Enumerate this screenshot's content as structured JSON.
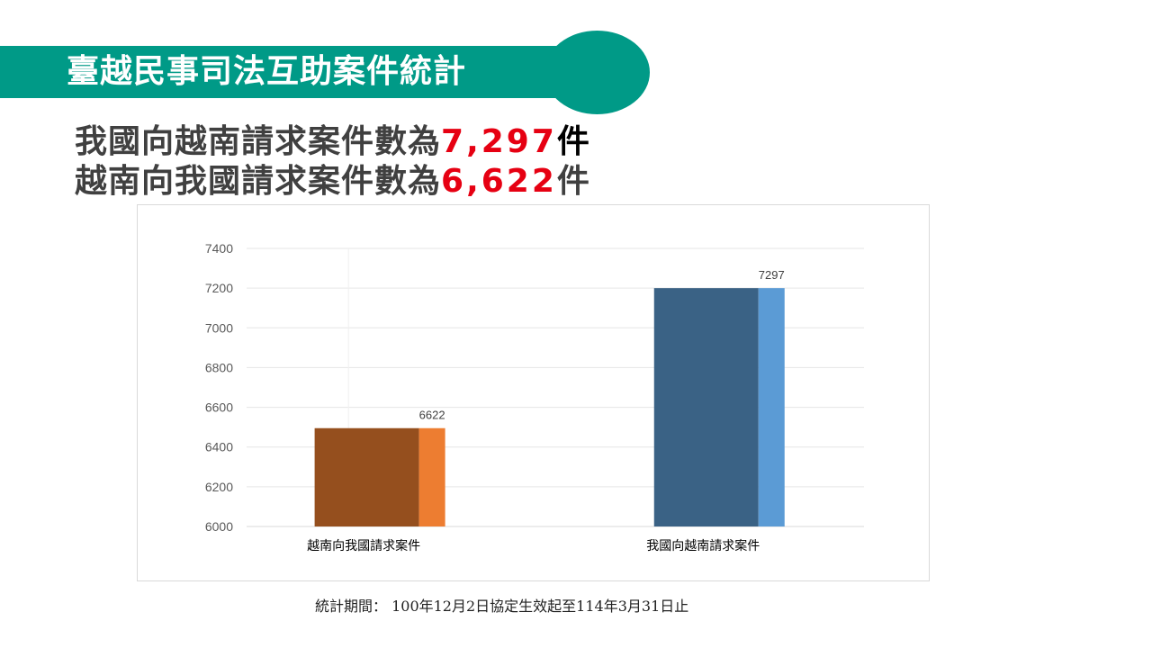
{
  "slide": {
    "title": "臺越民事司法互助案件統計",
    "headline_1": {
      "prefix": "我國向越南請求案件數為",
      "number": "7,297",
      "unit": "件"
    },
    "headline_2": {
      "prefix": "越南向我國請求案件數為",
      "number": "6,622",
      "unit": "件"
    },
    "footnote": "統計期間： 100年12月2日協定生效起至114年3月31日止"
  },
  "colors": {
    "banner": "#009a87",
    "highlight_number": "#e60012",
    "bar_1_front": "#954f1e",
    "bar_1_side": "#ed7d31",
    "bar_2_front": "#3a6285",
    "bar_2_side": "#5b9bd5"
  },
  "chart_data": {
    "type": "bar",
    "categories": [
      "越南向我國請求案件",
      "我國向越南請求案件"
    ],
    "values": [
      6622,
      7297
    ],
    "data_labels": [
      "6622",
      "7297"
    ],
    "ylim": [
      6000,
      7400
    ],
    "yticks": [
      "6000",
      "6200",
      "6400",
      "6600",
      "6800",
      "7000",
      "7200",
      "7400"
    ],
    "grid": true,
    "legend": "none"
  }
}
